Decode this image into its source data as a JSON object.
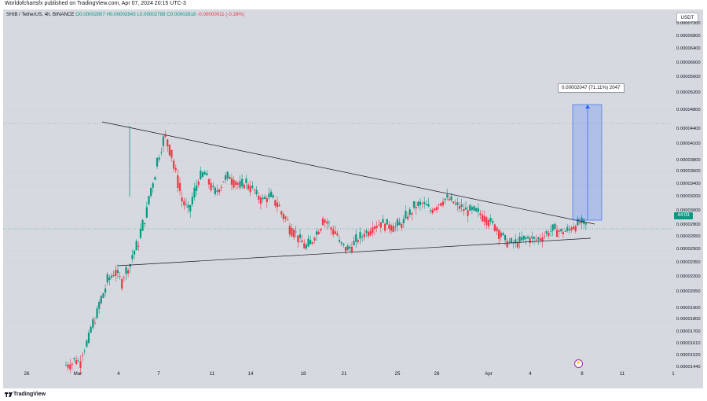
{
  "header": {
    "publisher": "Worldofchartsfx published on TradingView.com, Apr 07, 2024 20:15 UTC-3"
  },
  "legend": {
    "symbol": "SHIB / TetherUS, 4h, BINANCE",
    "open": "O0.00002807",
    "high": "H0.00002843",
    "low": "L0.00002788",
    "close": "C0.00002818",
    "change": "-0.00000011 (-0.39%)"
  },
  "currency_button": "USDT",
  "price_tag": "44:03",
  "annotation": "0.00002047 (71.11%) 2047",
  "footer": {
    "brand": "TradingView"
  },
  "event_marker": "⚡",
  "colors": {
    "up": "#089981",
    "down": "#f23645",
    "projection": "#2962ff",
    "line": "#000000"
  },
  "chart_data": {
    "type": "candlestick",
    "title": "SHIB / TetherUS, 4h, BINANCE",
    "y_scale": "log",
    "ylim": [
      1.43e-05,
      7.4e-06
    ],
    "y_ticks": [
      {
        "label": "0.00007200",
        "v": 7.2e-05
      },
      {
        "label": "0.00006800",
        "v": 6.8e-05
      },
      {
        "label": "0.00006400",
        "v": 6.4e-05
      },
      {
        "label": "0.00006000",
        "v": 6e-05
      },
      {
        "label": "0.00005600",
        "v": 5.6e-05
      },
      {
        "label": "0.00005200",
        "v": 5.2e-05
      },
      {
        "label": "0.00004800",
        "v": 4.8e-05
      },
      {
        "label": "0.00004400",
        "v": 4.4e-05
      },
      {
        "label": "0.00004100",
        "v": 4.1e-05
      },
      {
        "label": "0.00003800",
        "v": 3.8e-05
      },
      {
        "label": "0.00003600",
        "v": 3.6e-05
      },
      {
        "label": "0.00003400",
        "v": 3.4e-05
      },
      {
        "label": "0.00003200",
        "v": 3.2e-05
      },
      {
        "label": "0.00003000",
        "v": 3e-05
      },
      {
        "label": "0.00002800",
        "v": 2.8e-05
      },
      {
        "label": "0.00002650",
        "v": 2.65e-05
      },
      {
        "label": "0.00002500",
        "v": 2.5e-05
      },
      {
        "label": "0.00002350",
        "v": 2.35e-05
      },
      {
        "label": "0.00002200",
        "v": 2.2e-05
      },
      {
        "label": "0.00002050",
        "v": 2.05e-05
      },
      {
        "label": "0.00001900",
        "v": 1.9e-05
      },
      {
        "label": "0.00001800",
        "v": 1.8e-05
      },
      {
        "label": "0.00001700",
        "v": 1.7e-05
      },
      {
        "label": "0.00001610",
        "v": 1.61e-05
      },
      {
        "label": "0.00001520",
        "v": 1.52e-05
      },
      {
        "label": "0.00001440",
        "v": 1.44e-05
      }
    ],
    "x_ticks": [
      "26",
      "Mar",
      "4",
      "7",
      "11",
      "14",
      "18",
      "21",
      "25",
      "28",
      "Apr",
      "4",
      "8",
      "11",
      "1"
    ],
    "close_path": [
      [
        1.46e-05,
        1.47e-05
      ],
      [
        1.5e-05,
        1.48e-05
      ],
      [
        1.53e-05,
        1.65e-05
      ],
      [
        1.7e-05,
        1.86e-05
      ],
      [
        1.9e-05,
        2.1e-05
      ],
      [
        2.15e-05,
        2.25e-05
      ],
      [
        2.28e-05,
        2.15e-05
      ],
      [
        2.2e-05,
        2.35e-05
      ],
      [
        2.4e-05,
        2.6e-05
      ],
      [
        2.65e-05,
        3e-05
      ],
      [
        3.1e-05,
        3.6e-05
      ],
      [
        3.7e-05,
        4.2e-05
      ],
      [
        4.3e-05,
        3.9e-05
      ],
      [
        3.8e-05,
        3.3e-05
      ],
      [
        3.2e-05,
        3e-05
      ],
      [
        3e-05,
        3.4e-05
      ],
      [
        3.45e-05,
        3.6e-05
      ],
      [
        3.55e-05,
        3.3e-05
      ],
      [
        3.25e-05,
        3.4e-05
      ],
      [
        3.45e-05,
        3.55e-05
      ],
      [
        3.5e-05,
        3.4e-05
      ],
      [
        3.35e-05,
        3.45e-05
      ],
      [
        3.4e-05,
        3.3e-05
      ],
      [
        3.25e-05,
        3.15e-05
      ],
      [
        3.18e-05,
        3.22e-05
      ],
      [
        3.2e-05,
        3.05e-05
      ],
      [
        3e-05,
        2.85e-05
      ],
      [
        2.8e-05,
        2.7e-05
      ],
      [
        2.68e-05,
        2.55e-05
      ],
      [
        2.52e-05,
        2.62e-05
      ],
      [
        2.65e-05,
        2.8e-05
      ],
      [
        2.9e-05,
        2.82e-05
      ],
      [
        2.78e-05,
        2.68e-05
      ],
      [
        2.6e-05,
        2.52e-05
      ],
      [
        2.5e-05,
        2.58e-05
      ],
      [
        2.6e-05,
        2.68e-05
      ],
      [
        2.7e-05,
        2.75e-05
      ],
      [
        2.78e-05,
        2.83e-05
      ],
      [
        2.85e-05,
        2.81e-05
      ],
      [
        2.82e-05,
        2.78e-05
      ],
      [
        2.8e-05,
        2.85e-05
      ],
      [
        2.9e-05,
        3e-05
      ],
      [
        3.05e-05,
        3.1e-05
      ],
      [
        3.12e-05,
        3.05e-05
      ],
      [
        3e-05,
        3.08e-05
      ],
      [
        3.1e-05,
        3.18e-05
      ],
      [
        3.2e-05,
        3.12e-05
      ],
      [
        3.1e-05,
        3.05e-05
      ],
      [
        3.03e-05,
        3e-05
      ],
      [
        3.02e-05,
        2.98e-05
      ],
      [
        2.97e-05,
        2.9e-05
      ],
      [
        2.88e-05,
        2.8e-05
      ],
      [
        2.78e-05,
        2.65e-05
      ],
      [
        2.62e-05,
        2.58e-05
      ],
      [
        2.58e-05,
        2.6e-05
      ],
      [
        2.62e-05,
        2.65e-05
      ],
      [
        2.65e-05,
        2.62e-05
      ],
      [
        2.63e-05,
        2.68e-05
      ],
      [
        2.7e-05,
        2.75e-05
      ],
      [
        2.76e-05,
        2.72e-05
      ],
      [
        2.72e-05,
        2.75e-05
      ],
      [
        2.78e-05,
        2.82e-05
      ],
      [
        2.85e-05,
        2.81e-05
      ]
    ],
    "annotations": {
      "triangle_upper": "descending resistance line",
      "triangle_lower": "ascending support line",
      "projection_label": "0.00002047 (71.11%) 2047"
    }
  }
}
